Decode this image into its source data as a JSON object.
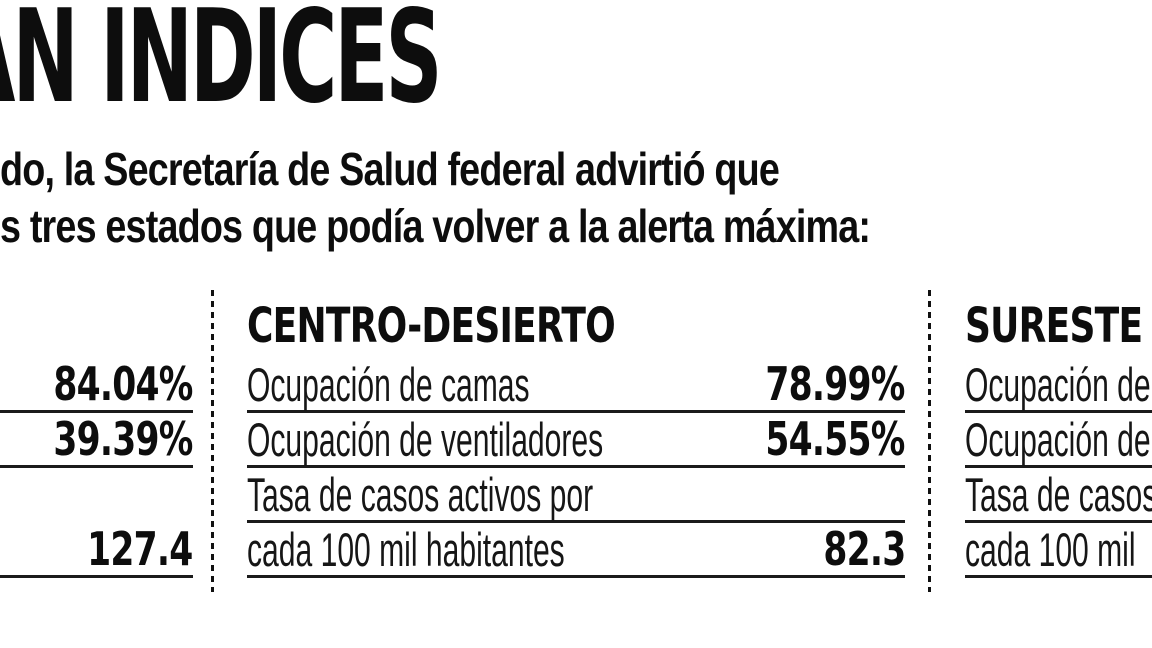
{
  "colors": {
    "ink": "#111111",
    "rule": "#1b1b1b",
    "background": "#ffffff"
  },
  "headline": {
    "visible_text": "AN ÍNDICES"
  },
  "intro": {
    "line1": "do, la Secretaría de Salud federal advirtió que",
    "line2": "s tres estados que podía volver a la alerta máxima:"
  },
  "columns": {
    "left": {
      "title": "",
      "rows": [
        {
          "value": "84.04%"
        },
        {
          "value": "39.39%"
        },
        {},
        {
          "value": "127.4"
        }
      ]
    },
    "center": {
      "title": "CENTRO-DESIERTO",
      "rows": [
        {
          "label": "Ocupación de camas",
          "value": "78.99%"
        },
        {
          "label": "Ocupación de ventiladores",
          "value": "54.55%"
        },
        {
          "label": "Tasa de casos activos por",
          "value": ""
        },
        {
          "label": "cada 100 mil habitantes",
          "value": "82.3"
        }
      ]
    },
    "right": {
      "title": "SURESTE",
      "rows": [
        {
          "label": "Ocupación de",
          "value": ""
        },
        {
          "label": "Ocupación de",
          "value": ""
        },
        {
          "label": "Tasa de casos",
          "value": ""
        },
        {
          "label": "cada 100 mil",
          "value": ""
        }
      ]
    }
  },
  "chart_data": {
    "type": "table",
    "title": "AN ÍNDICES",
    "metrics": [
      "Ocupación de camas",
      "Ocupación de ventiladores",
      "Tasa de casos activos por cada 100 mil habitantes"
    ],
    "regions": [
      {
        "name": "",
        "values": [
          "84.04%",
          "39.39%",
          "127.4"
        ]
      },
      {
        "name": "CENTRO-DESIERTO",
        "values": [
          "78.99%",
          "54.55%",
          "82.3"
        ]
      },
      {
        "name": "SURESTE",
        "values": [
          "",
          "",
          ""
        ]
      }
    ]
  }
}
